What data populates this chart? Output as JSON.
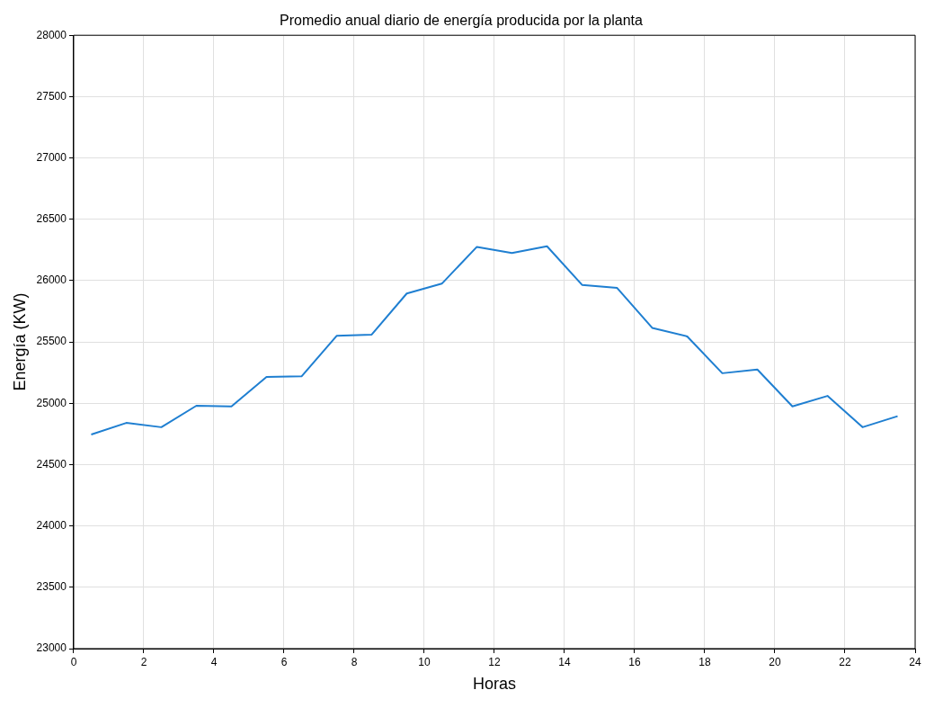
{
  "chart_data": {
    "type": "line",
    "title": "Promedio anual diario de energía producida por la planta",
    "xlabel": "Horas",
    "ylabel": "Energía (KW)",
    "x": [
      0.5,
      1.5,
      2.5,
      3.5,
      4.5,
      5.5,
      6.5,
      7.5,
      8.5,
      9.5,
      10.5,
      11.5,
      12.5,
      13.5,
      14.5,
      15.5,
      16.5,
      17.5,
      18.5,
      19.5,
      20.5,
      21.5,
      22.5,
      23.5
    ],
    "series": [
      {
        "color": "#1f7fd1",
        "values": [
          24745,
          24840,
          24805,
          24980,
          24975,
          25215,
          25220,
          25550,
          25560,
          25895,
          25975,
          26275,
          26225,
          26280,
          25965,
          25940,
          25615,
          25545,
          25245,
          25275,
          24975,
          25060,
          24805,
          24895
        ]
      }
    ],
    "xlim": [
      0,
      24
    ],
    "xticks": [
      0,
      2,
      4,
      6,
      8,
      10,
      12,
      14,
      16,
      18,
      20,
      22,
      24
    ],
    "ylim": [
      23000,
      28000
    ],
    "yticks": [
      23000,
      23500,
      24000,
      24500,
      25000,
      25500,
      26000,
      26500,
      27000,
      27500,
      28000
    ],
    "grid": true,
    "legend": false,
    "marker": "none",
    "line_style": "solid"
  }
}
